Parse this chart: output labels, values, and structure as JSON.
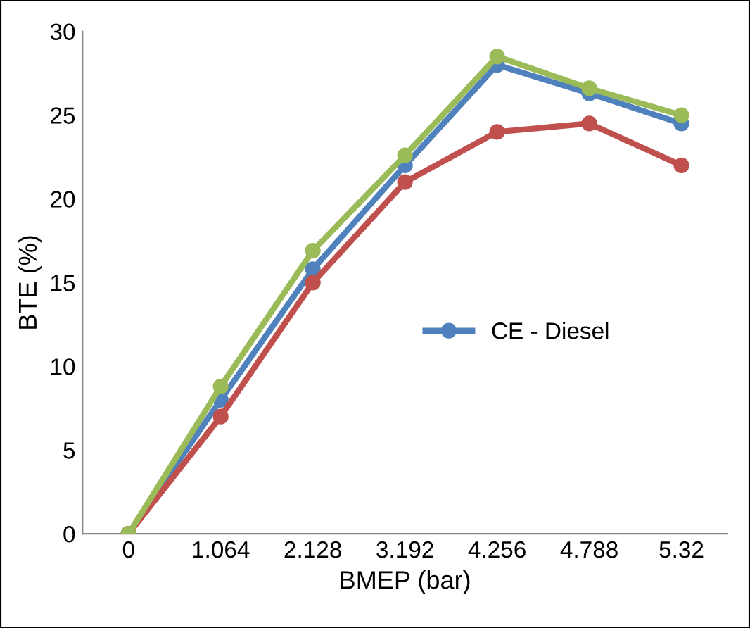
{
  "chart_data": {
    "type": "line",
    "xlabel": "BMEP (bar)",
    "ylabel": "BTE (%)",
    "categories": [
      "0",
      "1.064",
      "2.128",
      "3.192",
      "4.256",
      "4.788",
      "5.32"
    ],
    "series": [
      {
        "name": "CE - Diesel",
        "color": "#4f81bd",
        "values": [
          0,
          8,
          15.8,
          22,
          28,
          26.3,
          24.5
        ]
      },
      {
        "color": "#c0504d",
        "values": [
          0,
          7,
          15,
          21,
          24,
          24.5,
          22
        ]
      },
      {
        "color": "#9bbb59",
        "values": [
          0,
          8.8,
          16.9,
          22.6,
          28.5,
          26.6,
          25
        ]
      }
    ],
    "ylim": [
      0,
      30
    ],
    "yticks": [
      0,
      5,
      10,
      15,
      20,
      25,
      30
    ],
    "grid": false,
    "legend": "right",
    "marker": "circle",
    "line_style": "solid"
  }
}
